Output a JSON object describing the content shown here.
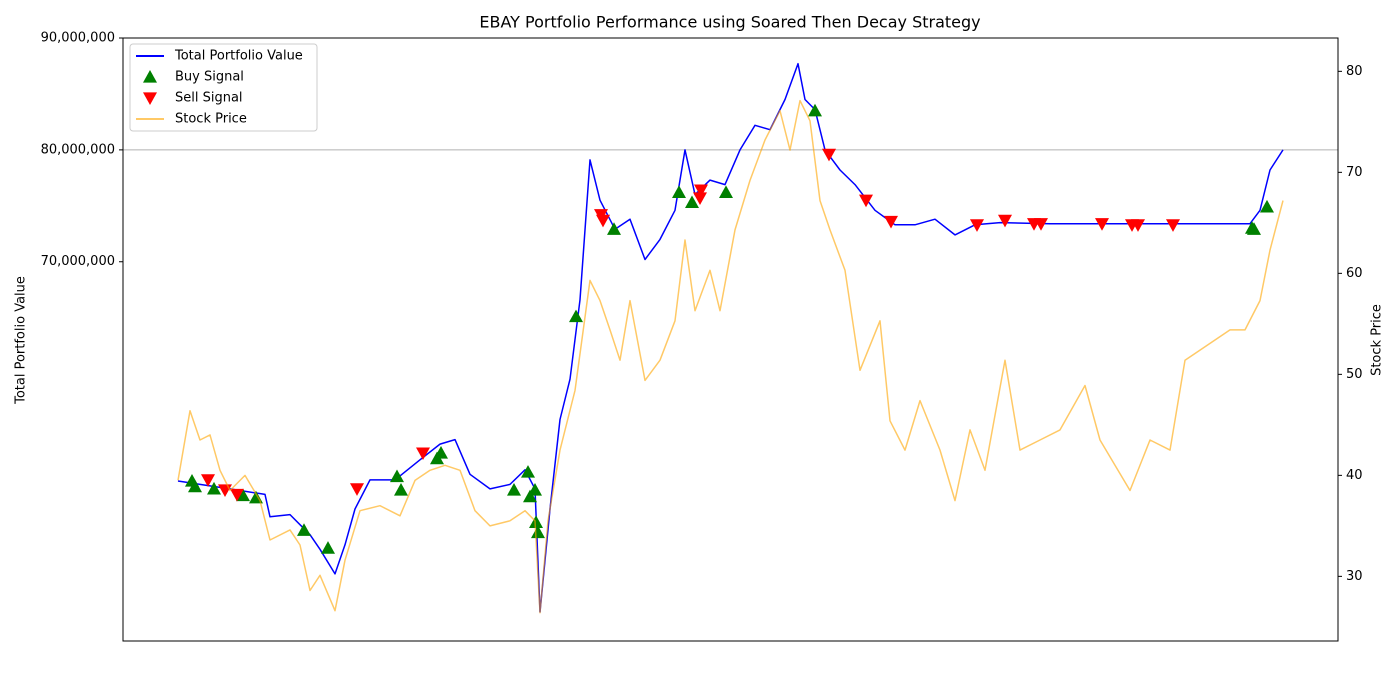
{
  "chart_data": {
    "type": "line",
    "title": "EBAY Portfolio Performance using Soared Then Decay Strategy",
    "ylabel": "Total Portfolio Value",
    "y2label": "Stock Price",
    "xlim": [
      -55,
      1160
    ],
    "ylim": [
      36100000,
      90000000
    ],
    "yticks": [
      {
        "value": 70000000,
        "label": "70,000,000"
      },
      {
        "value": 80000000,
        "label": "80,000,000"
      },
      {
        "value": 90000000,
        "label": "90,000,000"
      }
    ],
    "y2lim": [
      23.6,
      83.3
    ],
    "y2ticks": [
      30,
      40,
      50,
      60,
      70,
      80
    ],
    "hline": 80000000,
    "hline_color": "#b0b0b0",
    "legend": "upper left",
    "series": [
      {
        "name": "Total Portfolio Value",
        "color": "#0000ff",
        "marker": "none",
        "x": [
          0,
          22,
          52,
          87,
          92,
          112,
          122,
          132,
          142,
          157,
          167,
          177,
          192,
          217,
          242,
          262,
          277,
          292,
          312,
          332,
          347,
          357,
          362,
          372,
          382,
          392,
          402,
          412,
          422,
          437,
          452,
          467,
          482,
          497,
          507,
          517,
          532,
          547,
          562,
          577,
          592,
          607,
          620,
          627,
          637,
          647,
          662,
          677,
          697,
          717,
          737,
          757,
          777,
          797,
          822,
          872,
          972,
          1072,
          1082,
          1092,
          1105
        ],
        "values": [
          50400000,
          50100000,
          49700000,
          49200000,
          47200000,
          47400000,
          46500000,
          45600000,
          44300000,
          42100000,
          44700000,
          47900000,
          50500000,
          50500000,
          52300000,
          53700000,
          54100000,
          51000000,
          49700000,
          50100000,
          51400000,
          49700000,
          38700000,
          47900000,
          55900000,
          59500000,
          66600000,
          79100000,
          75500000,
          72900000,
          73800000,
          70200000,
          72000000,
          74600000,
          80000000,
          76000000,
          77300000,
          76900000,
          80000000,
          82200000,
          81800000,
          84500000,
          87700000,
          84500000,
          83600000,
          80000000,
          78200000,
          76900000,
          74600000,
          73300000,
          73300000,
          73800000,
          72400000,
          73300000,
          73500000,
          73400000,
          73400000,
          73400000,
          74600000,
          78200000,
          80000000
        ]
      },
      {
        "name": "Buy Signal",
        "color": "#008000",
        "marker": "triangle-up",
        "x": [
          14,
          17,
          36,
          65,
          78,
          126,
          150,
          219,
          223,
          259,
          263,
          336,
          350,
          352,
          357,
          358,
          360,
          398,
          436,
          501,
          514,
          548,
          637,
          1074,
          1076,
          1089
        ],
        "values": [
          50400000,
          49900000,
          49700000,
          49100000,
          48900000,
          46000000,
          44400000,
          50800000,
          49600000,
          52400000,
          52900000,
          49600000,
          51200000,
          49000000,
          49600000,
          46700000,
          45800000,
          65100000,
          72900000,
          76200000,
          75300000,
          76200000,
          83500000,
          73000000,
          72900000,
          74900000
        ]
      },
      {
        "name": "Sell Signal",
        "color": "#ff0000",
        "marker": "triangle-down",
        "x": [
          30,
          47,
          59,
          179,
          245,
          423,
          425,
          522,
          523,
          651,
          688,
          713,
          799,
          827,
          856,
          863,
          924,
          954,
          960,
          995
        ],
        "values": [
          50500000,
          49600000,
          49200000,
          49700000,
          52900000,
          74200000,
          73700000,
          75700000,
          76400000,
          79600000,
          75500000,
          73600000,
          73300000,
          73700000,
          73400000,
          73400000,
          73400000,
          73300000,
          73300000,
          73300000
        ]
      },
      {
        "name": "Stock Price",
        "color": "#ffa500",
        "marker": "none",
        "axis": "y2",
        "opacity": 0.6,
        "x": [
          0,
          12,
          22,
          32,
          42,
          52,
          67,
          82,
          92,
          112,
          122,
          132,
          142,
          157,
          167,
          182,
          202,
          222,
          237,
          252,
          267,
          282,
          297,
          312,
          332,
          347,
          357,
          362,
          370,
          382,
          397,
          412,
          422,
          432,
          442,
          452,
          467,
          482,
          497,
          507,
          517,
          532,
          542,
          557,
          572,
          587,
          602,
          612,
          622,
          632,
          642,
          652,
          667,
          682,
          702,
          712,
          727,
          742,
          762,
          777,
          792,
          807,
          827,
          842,
          862,
          882,
          907,
          922,
          952,
          972,
          992,
          1007,
          1022,
          1037,
          1052,
          1067,
          1082,
          1092,
          1105
        ],
        "values": [
          39.5,
          46.4,
          43.5,
          44.0,
          40.5,
          38.5,
          40.0,
          37.5,
          33.6,
          34.6,
          33.1,
          28.6,
          30.1,
          26.6,
          31.6,
          36.5,
          37.0,
          36.0,
          39.5,
          40.5,
          41.0,
          40.5,
          36.5,
          35.0,
          35.5,
          36.5,
          35.5,
          26.4,
          35.5,
          42.5,
          48.4,
          59.3,
          57.3,
          54.4,
          51.4,
          57.3,
          49.4,
          51.4,
          55.3,
          63.3,
          56.3,
          60.3,
          56.3,
          64.3,
          69.2,
          73.2,
          76.1,
          72.2,
          77.1,
          75.1,
          67.2,
          64.3,
          60.3,
          50.4,
          55.3,
          45.4,
          42.5,
          47.4,
          42.5,
          37.5,
          44.5,
          40.5,
          51.4,
          42.5,
          43.5,
          44.5,
          48.9,
          43.5,
          38.5,
          43.5,
          42.5,
          51.4,
          52.4,
          53.4,
          54.4,
          54.4,
          57.3,
          62.3,
          67.2
        ]
      }
    ]
  }
}
